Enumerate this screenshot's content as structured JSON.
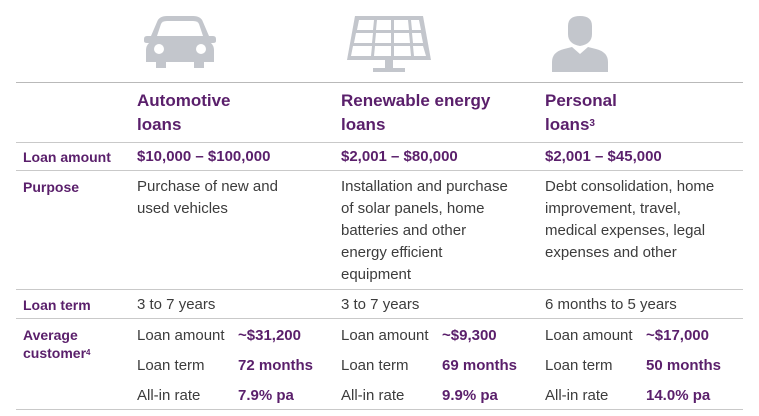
{
  "columns": [
    {
      "title_line1": "Automotive",
      "title_line2": "loans",
      "title_sup": "",
      "icon": "car-icon",
      "loan_amount": "$10,000 – $100,000",
      "purpose": [
        "Purchase of new and",
        "used vehicles"
      ],
      "loan_term": "3 to 7 years",
      "avg_amount": "~$31,200",
      "avg_term": "72 months",
      "avg_rate": "7.9% pa"
    },
    {
      "title_line1": "Renewable energy",
      "title_line2": "loans",
      "title_sup": "",
      "icon": "solar-panel-icon",
      "loan_amount": "$2,001 – $80,000",
      "purpose": [
        "Installation and purchase",
        "of solar panels, home",
        "batteries and other",
        "energy efficient",
        "equipment"
      ],
      "loan_term": "3 to 7 years",
      "avg_amount": "~$9,300",
      "avg_term": "69 months",
      "avg_rate": "9.9% pa"
    },
    {
      "title_line1": "Personal",
      "title_line2": "loans",
      "title_sup": "3",
      "icon": "person-icon",
      "loan_amount": "$2,001 – $45,000",
      "purpose": [
        "Debt consolidation, home",
        "improvement, travel,",
        "medical expenses, legal",
        "expenses and other"
      ],
      "loan_term": "6 months to 5 years",
      "avg_amount": "~$17,000",
      "avg_term": "50 months",
      "avg_rate": "14.0% pa"
    }
  ],
  "row_labels": {
    "loan_amount": "Loan amount",
    "purpose": "Purpose",
    "loan_term": "Loan term",
    "average_line1": "Average",
    "average_line2": "customer",
    "average_sup": "4"
  },
  "sub_labels": {
    "amount": "Loan amount",
    "term": "Loan term",
    "rate": "All-in rate"
  },
  "colors": {
    "accent": "#5a1f6b",
    "icon": "#c3c6cc",
    "text": "#3c3c3c",
    "rule": "#c9c9c9"
  }
}
